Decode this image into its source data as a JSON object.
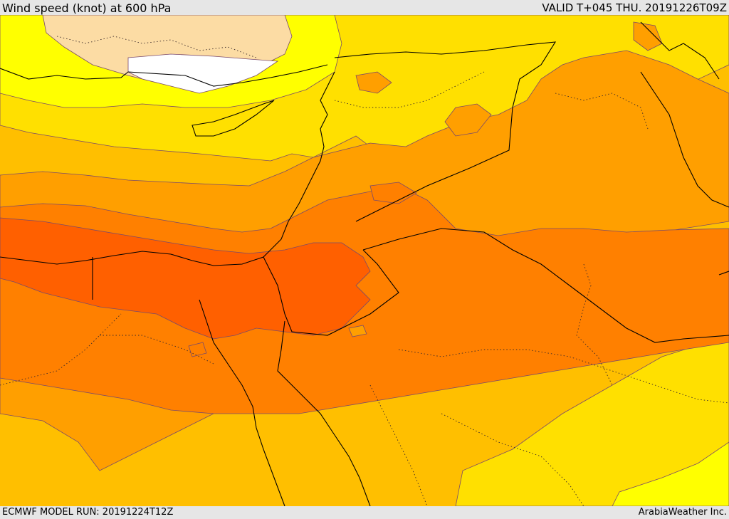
{
  "header": {
    "title": "Wind speed (knot) at 600 hPa",
    "valid": "VALID T+045 THU. 20191226T09Z"
  },
  "footer": {
    "model_run": "ECMWF MODEL RUN: 20191224T12Z",
    "credit": "ArabiaWeather Inc."
  },
  "map": {
    "field": "wind speed",
    "level": "600 hPa",
    "unit": "knot",
    "colors": {
      "white": "#ffffff",
      "light_peach": "#fcdca4",
      "bright_yellow": "#ffff00",
      "yellow": "#ffe000",
      "golden": "#ffbf00",
      "light_orange": "#ff9f00",
      "orange": "#ff8000",
      "deep_orange": "#ff6000",
      "contour": "#7a4a6a",
      "coast_border": "#000000"
    }
  }
}
